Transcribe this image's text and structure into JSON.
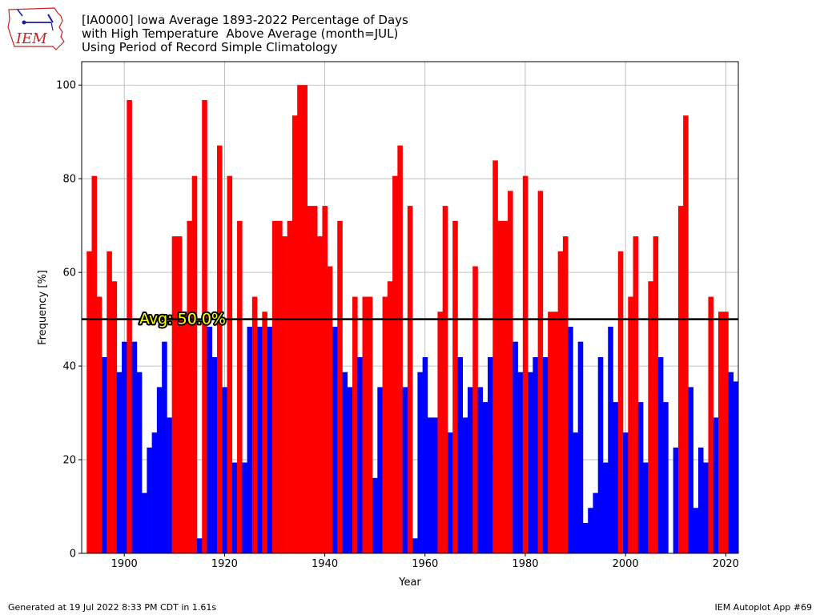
{
  "header": {
    "title_lines": [
      "[IA0000] Iowa Average 1893-2022 Percentage of Days",
      "with High Temperature  Above Average (month=JUL)",
      "Using Period of Record Simple Climatology"
    ],
    "logo_text": "IEM"
  },
  "footer": {
    "generated": "Generated at 19 Jul 2022 8:33 PM CDT in 1.61s",
    "app": "IEM Autoplot App #69"
  },
  "colors": {
    "above": "#ff0000",
    "below": "#0000ff",
    "avg_line": "#000000",
    "avg_text": "#ffff00",
    "grid": "#b0b0b0",
    "logo": "#cc2222",
    "logo_accent": "#1a1aa8"
  },
  "chart_data": {
    "type": "bar",
    "xlabel": "Year",
    "ylabel": "Frequency [%]",
    "xlim": [
      1891.5,
      2022.5
    ],
    "ylim": [
      0,
      105
    ],
    "xticks": [
      1900,
      1920,
      1940,
      1960,
      1980,
      2000,
      2020
    ],
    "yticks": [
      0,
      20,
      40,
      60,
      80,
      100
    ],
    "grid": true,
    "average": 50.0,
    "average_label": "Avg: 50.0%",
    "years": [
      1893,
      1894,
      1895,
      1896,
      1897,
      1898,
      1899,
      1900,
      1901,
      1902,
      1903,
      1904,
      1905,
      1906,
      1907,
      1908,
      1909,
      1910,
      1911,
      1912,
      1913,
      1914,
      1915,
      1916,
      1917,
      1918,
      1919,
      1920,
      1921,
      1922,
      1923,
      1924,
      1925,
      1926,
      1927,
      1928,
      1929,
      1930,
      1931,
      1932,
      1933,
      1934,
      1935,
      1936,
      1937,
      1938,
      1939,
      1940,
      1941,
      1942,
      1943,
      1944,
      1945,
      1946,
      1947,
      1948,
      1949,
      1950,
      1951,
      1952,
      1953,
      1954,
      1955,
      1956,
      1957,
      1958,
      1959,
      1960,
      1961,
      1962,
      1963,
      1964,
      1965,
      1966,
      1967,
      1968,
      1969,
      1970,
      1971,
      1972,
      1973,
      1974,
      1975,
      1976,
      1977,
      1978,
      1979,
      1980,
      1981,
      1982,
      1983,
      1984,
      1985,
      1986,
      1987,
      1988,
      1989,
      1990,
      1991,
      1992,
      1993,
      1994,
      1995,
      1996,
      1997,
      1998,
      1999,
      2000,
      2001,
      2002,
      2003,
      2004,
      2005,
      2006,
      2007,
      2008,
      2009,
      2010,
      2011,
      2012,
      2013,
      2014,
      2015,
      2016,
      2017,
      2018,
      2019,
      2020,
      2021,
      2022
    ],
    "values": [
      64.5,
      80.6,
      54.8,
      41.9,
      64.5,
      58.1,
      38.7,
      45.2,
      96.8,
      45.2,
      38.7,
      12.9,
      22.6,
      25.8,
      35.5,
      45.2,
      29.0,
      67.7,
      67.7,
      51.6,
      71.0,
      80.6,
      3.2,
      96.8,
      48.4,
      41.9,
      87.1,
      35.5,
      80.6,
      19.4,
      71.0,
      19.4,
      48.4,
      54.8,
      48.4,
      51.6,
      48.4,
      71.0,
      71.0,
      67.7,
      71.0,
      93.5,
      100.0,
      100.0,
      74.2,
      74.2,
      67.7,
      74.2,
      61.3,
      48.4,
      71.0,
      38.7,
      35.5,
      54.8,
      41.9,
      54.8,
      54.8,
      16.1,
      35.5,
      54.8,
      58.1,
      80.6,
      87.1,
      35.5,
      74.2,
      3.2,
      38.7,
      41.9,
      29.0,
      29.0,
      51.6,
      74.2,
      25.8,
      71.0,
      41.9,
      29.0,
      35.5,
      61.3,
      35.5,
      32.3,
      41.9,
      83.9,
      71.0,
      71.0,
      77.4,
      45.2,
      38.7,
      80.6,
      38.7,
      41.9,
      77.4,
      41.9,
      51.6,
      51.6,
      64.5,
      67.7,
      48.4,
      25.8,
      45.2,
      6.5,
      9.7,
      12.9,
      41.9,
      19.4,
      48.4,
      32.3,
      64.5,
      25.8,
      54.8,
      67.7,
      32.3,
      19.4,
      58.1,
      67.7,
      41.9,
      32.3,
      0.0,
      22.6,
      74.2,
      93.5,
      35.5,
      9.7,
      22.6,
      19.4,
      54.8,
      29.0,
      51.6,
      51.6,
      38.7,
      36.7
    ]
  }
}
